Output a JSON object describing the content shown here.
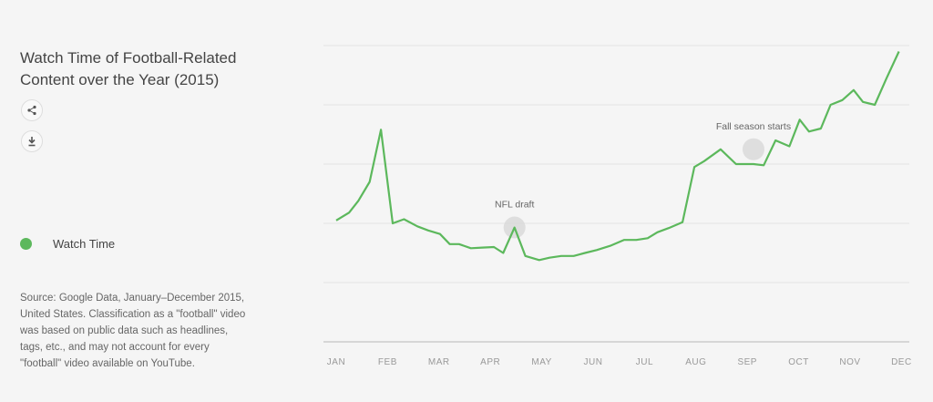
{
  "title": "Watch Time of Football-Related Content over the Year (2015)",
  "icons": {
    "share": "share-icon",
    "download": "download-icon"
  },
  "colors": {
    "series": "#5cb85c",
    "grid": "#e4e4e4",
    "axis": "#cccccc",
    "marker": "#d9d9d9"
  },
  "source": "Source: Google Data, January–December 2015, United States. Classification as a \"football\" video was based on public data such as headlines, tags, etc., and may not account for every \"football\" video available on YouTube.",
  "chart_data": {
    "type": "line",
    "title": "Watch Time of Football-Related Content over the Year (2015)",
    "xlabel": "",
    "ylabel": "",
    "grid": true,
    "legend_position": "left",
    "categories": [
      "JAN",
      "FEB",
      "MAR",
      "APR",
      "MAY",
      "JUN",
      "JUL",
      "AUG",
      "SEP",
      "OCT",
      "NOV",
      "DEC"
    ],
    "ylim": [
      0,
      5
    ],
    "series": [
      {
        "name": "Watch Time",
        "x": [
          0,
          0.25,
          0.43,
          0.65,
          0.87,
          1.1,
          1.32,
          1.58,
          1.79,
          2.02,
          2.21,
          2.39,
          2.62,
          2.84,
          3.07,
          3.25,
          3.47,
          3.68,
          3.95,
          4.15,
          4.38,
          4.62,
          4.84,
          5.07,
          5.33,
          5.6,
          5.84,
          6.06,
          6.25,
          6.47,
          6.74,
          6.97,
          7.16,
          7.48,
          7.78,
          8.12,
          8.32,
          8.55,
          8.82,
          9.02,
          9.2,
          9.43,
          9.62,
          9.85,
          10.07,
          10.25,
          10.48,
          10.71,
          10.95
        ],
        "y": [
          2.05,
          2.18,
          2.38,
          2.7,
          3.58,
          2.0,
          2.07,
          1.95,
          1.88,
          1.82,
          1.65,
          1.65,
          1.58,
          1.59,
          1.6,
          1.5,
          1.93,
          1.45,
          1.38,
          1.42,
          1.45,
          1.45,
          1.5,
          1.55,
          1.62,
          1.72,
          1.72,
          1.75,
          1.85,
          1.92,
          2.02,
          2.95,
          3.05,
          3.25,
          3.0,
          3.0,
          2.98,
          3.4,
          3.3,
          3.75,
          3.55,
          3.6,
          4.0,
          4.08,
          4.25,
          4.05,
          4.0,
          4.45,
          4.9
        ]
      }
    ],
    "annotations": [
      {
        "text": "NFL draft",
        "x": 3.47,
        "y": 1.93
      },
      {
        "text": "Fall season starts",
        "x": 8.12,
        "y": 3.25
      }
    ]
  }
}
